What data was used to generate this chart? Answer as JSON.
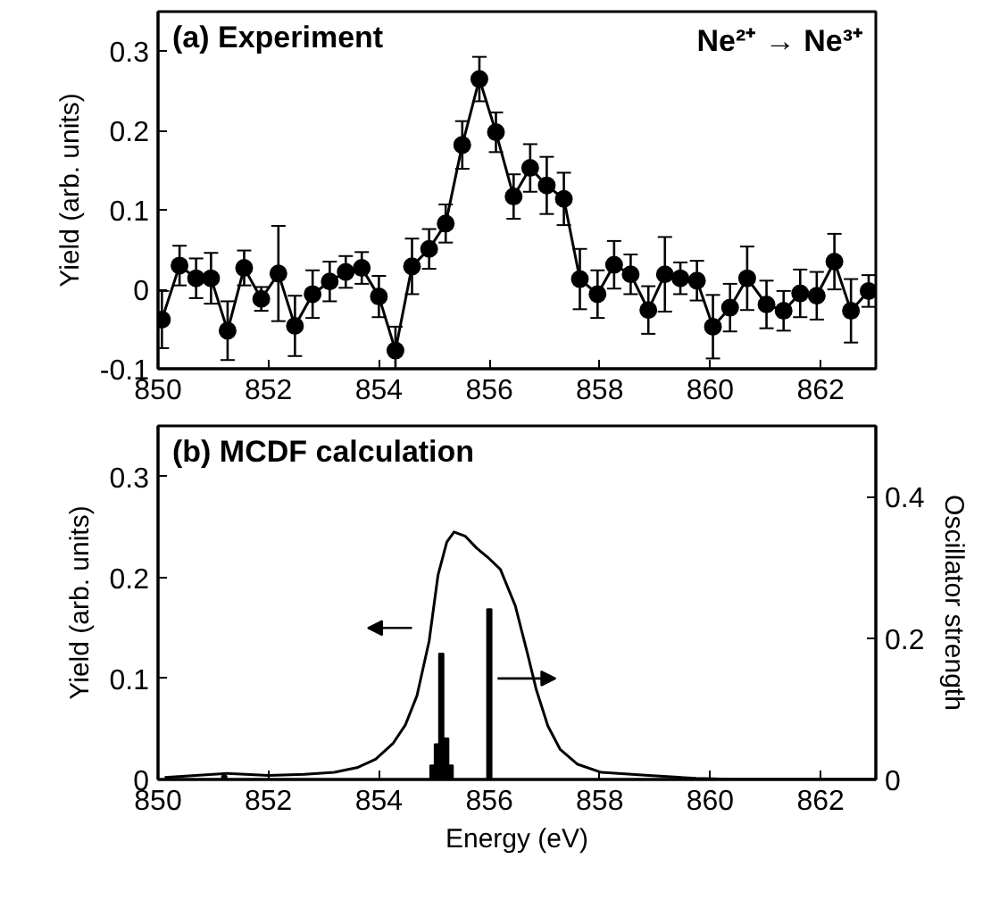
{
  "chart_data": [
    {
      "type": "line",
      "title": "(a) Experiment",
      "ylabel": "Yield (arb. units)",
      "annotations": [
        "Ne²⁺ → Ne³⁺"
      ],
      "marker": "circle",
      "line_style": "solid",
      "grid": false,
      "xlim": [
        850,
        863
      ],
      "xticks": [
        850,
        852,
        854,
        856,
        858,
        860,
        862
      ],
      "ylim": [
        -0.1,
        0.35
      ],
      "yticks": [
        -0.1,
        0,
        0.1,
        0.2,
        0.3
      ],
      "series": [
        {
          "color": "#000000",
          "x": [
            850.07,
            850.39,
            850.69,
            850.96,
            851.26,
            851.56,
            851.87,
            852.18,
            852.48,
            852.8,
            853.11,
            853.4,
            853.69,
            854.0,
            854.3,
            854.6,
            854.91,
            855.21,
            855.51,
            855.82,
            856.12,
            856.44,
            856.74,
            857.04,
            857.35,
            857.64,
            857.96,
            858.26,
            858.56,
            858.88,
            859.18,
            859.46,
            859.76,
            860.05,
            860.36,
            860.67,
            861.02,
            861.33,
            861.63,
            861.93,
            862.25,
            862.55,
            862.87
          ],
          "values": [
            -0.038,
            0.03,
            0.014,
            0.014,
            -0.052,
            0.027,
            -0.012,
            0.02,
            -0.046,
            -0.006,
            0.01,
            0.022,
            0.027,
            -0.009,
            -0.077,
            0.029,
            0.051,
            0.083,
            0.182,
            0.265,
            0.198,
            0.117,
            0.153,
            0.131,
            0.114,
            0.013,
            -0.006,
            0.031,
            0.019,
            -0.026,
            0.019,
            0.014,
            0.011,
            -0.047,
            -0.023,
            0.014,
            -0.019,
            -0.027,
            -0.005,
            -0.008,
            0.035,
            -0.027,
            -0.002
          ],
          "errors": [
            0.036,
            0.025,
            0.025,
            0.032,
            0.037,
            0.022,
            0.015,
            0.06,
            0.038,
            0.03,
            0.025,
            0.02,
            0.02,
            0.026,
            0.03,
            0.035,
            0.025,
            0.024,
            0.03,
            0.028,
            0.025,
            0.028,
            0.03,
            0.036,
            0.033,
            0.038,
            0.03,
            0.03,
            0.025,
            0.03,
            0.047,
            0.02,
            0.025,
            0.04,
            0.03,
            0.04,
            0.03,
            0.025,
            0.03,
            0.03,
            0.035,
            0.04,
            0.02
          ]
        }
      ]
    },
    {
      "type": "line",
      "title": "(b) MCDF calculation",
      "xlabel": "Energy (eV)",
      "ylabel": "Yield (arb. units)",
      "y2label": "Oscillator strength",
      "grid": false,
      "xlim": [
        850,
        863
      ],
      "xticks": [
        850,
        852,
        854,
        856,
        858,
        860,
        862
      ],
      "ylim": [
        0,
        0.35
      ],
      "yticks": [
        0,
        0.1,
        0.2,
        0.3
      ],
      "y2lim": [
        0,
        0.5
      ],
      "y2ticks": [
        0,
        0.2,
        0.4
      ],
      "series": [
        {
          "type": "line",
          "color": "#000000",
          "x": [
            850.12,
            851.25,
            852.0,
            852.65,
            853.19,
            853.62,
            853.94,
            854.26,
            854.48,
            854.69,
            854.91,
            855.07,
            855.23,
            855.36,
            855.56,
            855.77,
            855.99,
            856.2,
            856.47,
            856.69,
            856.85,
            857.06,
            857.28,
            857.6,
            858.03,
            858.89,
            859.75,
            860.51,
            863.0
          ],
          "values": [
            0.002,
            0.006,
            0.004,
            0.005,
            0.007,
            0.012,
            0.02,
            0.036,
            0.054,
            0.083,
            0.137,
            0.202,
            0.235,
            0.245,
            0.241,
            0.229,
            0.219,
            0.208,
            0.172,
            0.125,
            0.089,
            0.053,
            0.03,
            0.015,
            0.007,
            0.004,
            0.001,
            0.0,
            0.0
          ]
        },
        {
          "type": "bar",
          "axis": "y2",
          "color": "#000000",
          "x": [
            851.2,
            854.97,
            855.05,
            855.13,
            855.22,
            855.3,
            856.0
          ],
          "values": [
            0.005,
            0.02,
            0.05,
            0.178,
            0.058,
            0.02,
            0.241
          ]
        }
      ]
    }
  ]
}
